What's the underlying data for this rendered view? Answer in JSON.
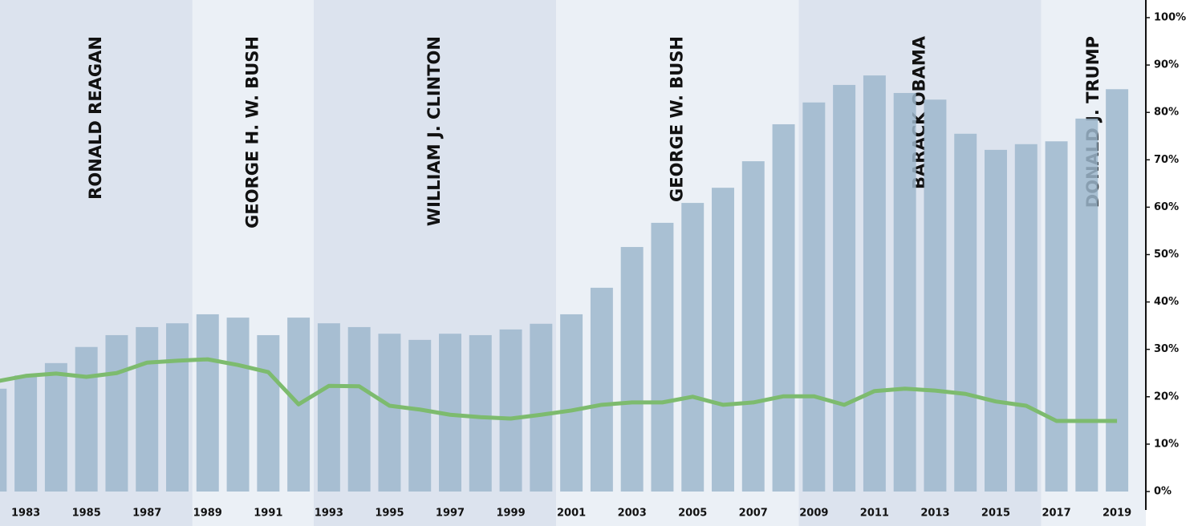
{
  "chart_data": {
    "type": "bar",
    "x": [
      1982,
      1983,
      1984,
      1985,
      1986,
      1987,
      1988,
      1989,
      1990,
      1991,
      1992,
      1993,
      1994,
      1995,
      1996,
      1997,
      1998,
      1999,
      2000,
      2001,
      2002,
      2003,
      2004,
      2005,
      2006,
      2007,
      2008,
      2009,
      2010,
      2011,
      2012,
      2013,
      2014,
      2015,
      2016,
      2017,
      2018,
      2019
    ],
    "xlim": [
      1982.15,
      2019.95
    ],
    "xticks": [
      1983,
      1985,
      1987,
      1989,
      1991,
      1993,
      1995,
      1997,
      1999,
      2001,
      2003,
      2005,
      2007,
      2009,
      2011,
      2013,
      2015,
      2017,
      2019
    ],
    "ylim": [
      0,
      100
    ],
    "yticks": [
      {
        "value": 0,
        "label": "0%"
      },
      {
        "value": 10,
        "label": "10%"
      },
      {
        "value": 20,
        "label": "20%"
      },
      {
        "value": 30,
        "label": "30%"
      },
      {
        "value": 40,
        "label": "40%"
      },
      {
        "value": 50,
        "label": "50%"
      },
      {
        "value": 60,
        "label": "60%"
      },
      {
        "value": 70,
        "label": "70%"
      },
      {
        "value": 80,
        "label": "80%"
      },
      {
        "value": 90,
        "label": "90%"
      },
      {
        "value": 100,
        "label": "100%"
      }
    ],
    "series": [
      {
        "type": "bar",
        "color": "#9db7cc",
        "values": [
          21.7,
          24.5,
          27.1,
          30.5,
          33,
          34.7,
          35.5,
          37.4,
          36.7,
          33,
          36.7,
          35.5,
          34.7,
          33.3,
          32,
          33.3,
          33,
          34.2,
          35.4,
          37.4,
          43,
          51.6,
          56.7,
          60.9,
          64.1,
          69.7,
          77.5,
          82.1,
          85.8,
          87.8,
          84.1,
          82.7,
          75.5,
          72.1,
          73.3,
          73.9,
          78.7,
          84.9
        ]
      },
      {
        "type": "line",
        "color": "#7dbb6e",
        "values": [
          23.2,
          24.4,
          24.9,
          24.2,
          25,
          27.2,
          27.6,
          27.9,
          26.7,
          25.2,
          18.4,
          22.3,
          22.2,
          18.1,
          17.3,
          16.2,
          15.7,
          15.4,
          16.2,
          17.1,
          18.3,
          18.8,
          18.8,
          20,
          18.3,
          18.8,
          20.1,
          20.1,
          18.3,
          21.2,
          21.7,
          21.3,
          20.6,
          19,
          18.1,
          14.9,
          14.9,
          14.9
        ]
      }
    ],
    "presidencies": [
      {
        "name": "RONALD REAGAN",
        "from": 1980.5,
        "to": 1988.5,
        "color": "#dce3ee"
      },
      {
        "name": "GEORGE H. W. BUSH",
        "from": 1988.5,
        "to": 1992.5,
        "color": "#ebf0f6"
      },
      {
        "name": "WILLIAM J. CLINTON",
        "from": 1992.5,
        "to": 2000.5,
        "color": "#dce3ee"
      },
      {
        "name": "GEORGE W. BUSH",
        "from": 2000.5,
        "to": 2008.5,
        "color": "#ebf0f6"
      },
      {
        "name": "BARACK OBAMA",
        "from": 2008.5,
        "to": 2016.5,
        "color": "#dce3ee"
      },
      {
        "name": "DONALD J. TRUMP",
        "from": 2016.5,
        "to": 2020.5,
        "color": "#ebf0f6"
      }
    ]
  }
}
